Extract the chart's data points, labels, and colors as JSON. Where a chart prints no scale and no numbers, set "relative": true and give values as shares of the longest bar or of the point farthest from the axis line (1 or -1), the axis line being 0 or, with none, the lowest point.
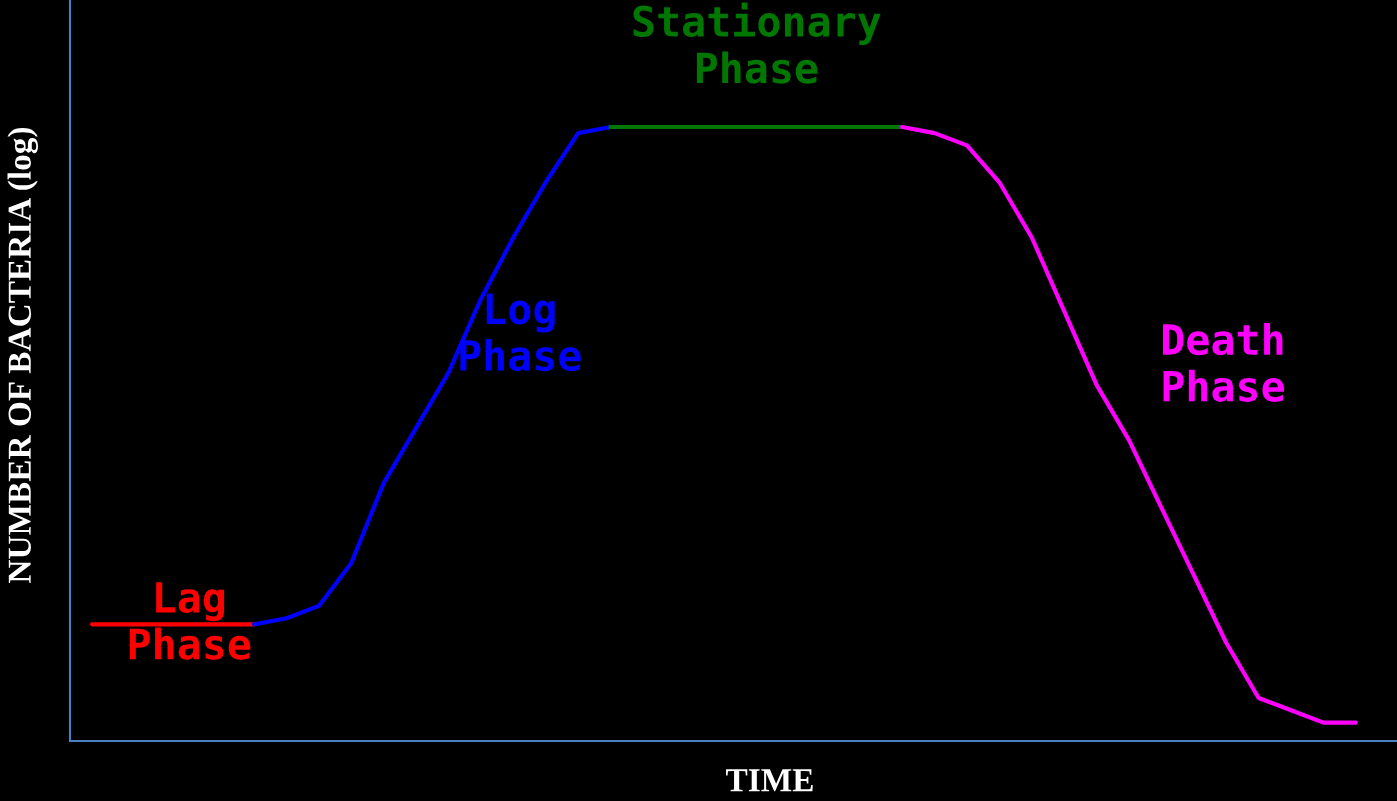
{
  "chart_data": {
    "type": "line",
    "relative": true,
    "xlabel": "TIME",
    "ylabel": "NUMBER OF BACTERIA (log)",
    "legend": false,
    "marker": "none",
    "line_style": "solid",
    "categories": [
      null,
      null,
      null,
      null,
      null,
      null,
      null,
      null,
      null,
      null,
      null,
      null,
      null,
      null,
      null,
      null,
      null,
      null,
      null,
      null,
      null,
      null,
      null,
      null,
      null,
      null,
      null,
      null,
      null,
      null,
      null,
      null,
      null,
      null,
      null,
      null,
      null,
      null,
      null,
      null
    ],
    "series": [
      {
        "name": "Lag Phase",
        "color": "#ff0000",
        "values": [
          0.19,
          0.19,
          0.19,
          0.19,
          0.19,
          0.19,
          null,
          null,
          null,
          null,
          null,
          null,
          null,
          null,
          null,
          null,
          null,
          null,
          null,
          null,
          null,
          null,
          null,
          null,
          null,
          null,
          null,
          null,
          null,
          null,
          null,
          null,
          null,
          null,
          null,
          null,
          null,
          null,
          null,
          null
        ]
      },
      {
        "name": "Log Phase",
        "color": "#0000ff",
        "values": [
          null,
          null,
          null,
          null,
          null,
          0.19,
          0.2,
          0.22,
          0.29,
          0.42,
          0.51,
          0.6,
          0.72,
          0.82,
          0.91,
          0.99,
          1,
          null,
          null,
          null,
          null,
          null,
          null,
          null,
          null,
          null,
          null,
          null,
          null,
          null,
          null,
          null,
          null,
          null,
          null,
          null,
          null,
          null,
          null,
          null
        ]
      },
      {
        "name": "Stationary Phase",
        "color": "#007700",
        "values": [
          null,
          null,
          null,
          null,
          null,
          null,
          null,
          null,
          null,
          null,
          null,
          null,
          null,
          null,
          null,
          null,
          1,
          1,
          1,
          1,
          1,
          1,
          1,
          1,
          1,
          1,
          null,
          null,
          null,
          null,
          null,
          null,
          null,
          null,
          null,
          null,
          null,
          null,
          null,
          null
        ]
      },
      {
        "name": "Death Phase",
        "color": "#ff00ff",
        "values": [
          null,
          null,
          null,
          null,
          null,
          null,
          null,
          null,
          null,
          null,
          null,
          null,
          null,
          null,
          null,
          null,
          null,
          null,
          null,
          null,
          null,
          null,
          null,
          null,
          null,
          1,
          0.99,
          0.97,
          0.91,
          0.82,
          0.7,
          0.58,
          0.49,
          0.38,
          0.27,
          0.16,
          0.07,
          0.05,
          0.03,
          0.03
        ]
      }
    ]
  }
}
